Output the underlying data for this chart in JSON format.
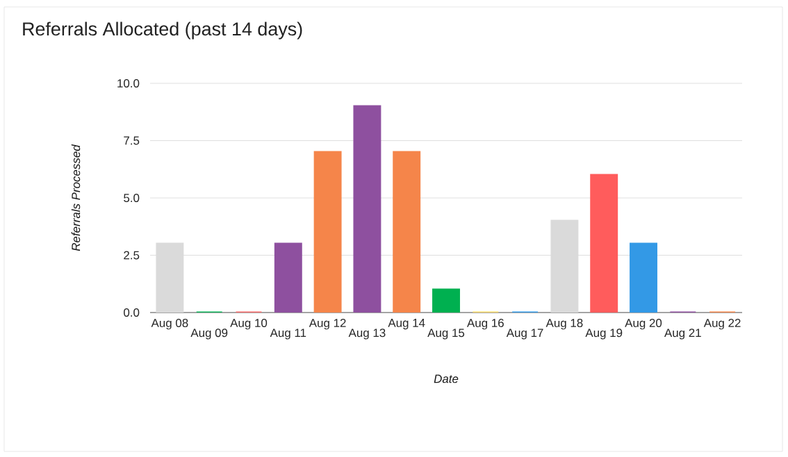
{
  "chart_data": {
    "type": "bar",
    "title": "Referrals Allocated (past 14 days)",
    "xlabel": "Date",
    "ylabel": "Referrals Processed",
    "categories": [
      "Aug 08",
      "Aug 09",
      "Aug 10",
      "Aug 11",
      "Aug 12",
      "Aug 13",
      "Aug 14",
      "Aug 15",
      "Aug 16",
      "Aug 17",
      "Aug 18",
      "Aug 19",
      "Aug 20",
      "Aug 21",
      "Aug 22"
    ],
    "values": [
      3,
      0,
      0,
      3,
      7,
      9,
      7,
      1,
      0,
      0,
      4,
      6,
      3,
      0,
      0
    ],
    "colors": [
      "#dadada",
      "#0fb35a",
      "#ff6b6b",
      "#8e509f",
      "#f5854a",
      "#8e509f",
      "#f5854a",
      "#00b050",
      "#ffd966",
      "#3399e6",
      "#dadada",
      "#ff5c5c",
      "#3399e6",
      "#8e509f",
      "#f5854a"
    ],
    "ylim": [
      0,
      10
    ],
    "yticks": [
      {
        "value": 0,
        "label": "0.0"
      },
      {
        "value": 2.5,
        "label": "2.5"
      },
      {
        "value": 5,
        "label": "5.0"
      },
      {
        "value": 7.5,
        "label": "7.5"
      },
      {
        "value": 10,
        "label": "10.0"
      }
    ],
    "grid": "y"
  }
}
